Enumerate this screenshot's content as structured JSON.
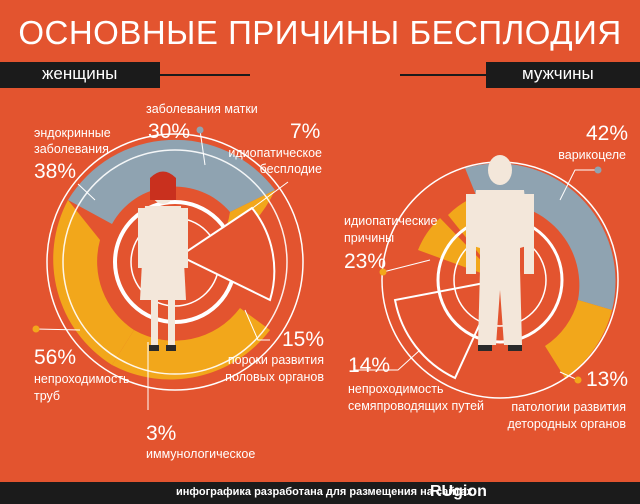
{
  "title": "ОСНОВНЫЕ ПРИЧИНЫ БЕСПЛОДИЯ",
  "sections": {
    "women": "женщины",
    "men": "мужчины"
  },
  "colors": {
    "background": "#e3542f",
    "gray_blue": "#8fa3b1",
    "yellow": "#f2a71b",
    "dark": "#1b1b1b",
    "white": "#ffffff"
  },
  "chart_data": [
    {
      "type": "pie",
      "section": "женщины",
      "slices": [
        {
          "label": "непроходимость труб",
          "value": 56,
          "pct": "56%"
        },
        {
          "label": "эндокринные заболевания",
          "value": 38,
          "pct": "38%"
        },
        {
          "label": "заболевания матки",
          "value": 30,
          "pct": "30%"
        },
        {
          "label": "идиопатическое бесплодие",
          "value": 7,
          "pct": "7%"
        },
        {
          "label": "пороки развития половых органов",
          "value": 15,
          "pct": "15%"
        },
        {
          "label": "иммунологическое",
          "value": 3,
          "pct": "3%"
        }
      ]
    },
    {
      "type": "pie",
      "section": "мужчины",
      "slices": [
        {
          "label": "варикоцеле",
          "value": 42,
          "pct": "42%"
        },
        {
          "label": "патологии развития детородных органов",
          "value": 13,
          "pct": "13%"
        },
        {
          "label": "непроходимость семяпроводящих путей",
          "value": 14,
          "pct": "14%"
        },
        {
          "label": "идиопатические причины",
          "value": 23,
          "pct": "23%"
        }
      ]
    }
  ],
  "labels": {
    "w_endo_1": "эндокринные",
    "w_endo_2": "заболевания",
    "w_uterus": "заболевания матки",
    "w_idio_1": "идиопатическое",
    "w_idio_2": "бесплодие",
    "w_tubes_1": "непроходимость",
    "w_tubes_2": "труб",
    "w_defect_1": "пороки развития",
    "w_defect_2": "половых органов",
    "w_immuno": "иммунологическое",
    "m_vari": "варикоцеле",
    "m_idio_1": "идиопатические",
    "m_idio_2": "причины",
    "m_obst_1": "непроходимость",
    "m_obst_2": "семяпроводящих путей",
    "m_path_1": "патологии развития",
    "m_path_2": "детородных органов"
  },
  "footer": {
    "text": "инфографика разработана для размещения на сайтах",
    "logo": "RUgion"
  }
}
